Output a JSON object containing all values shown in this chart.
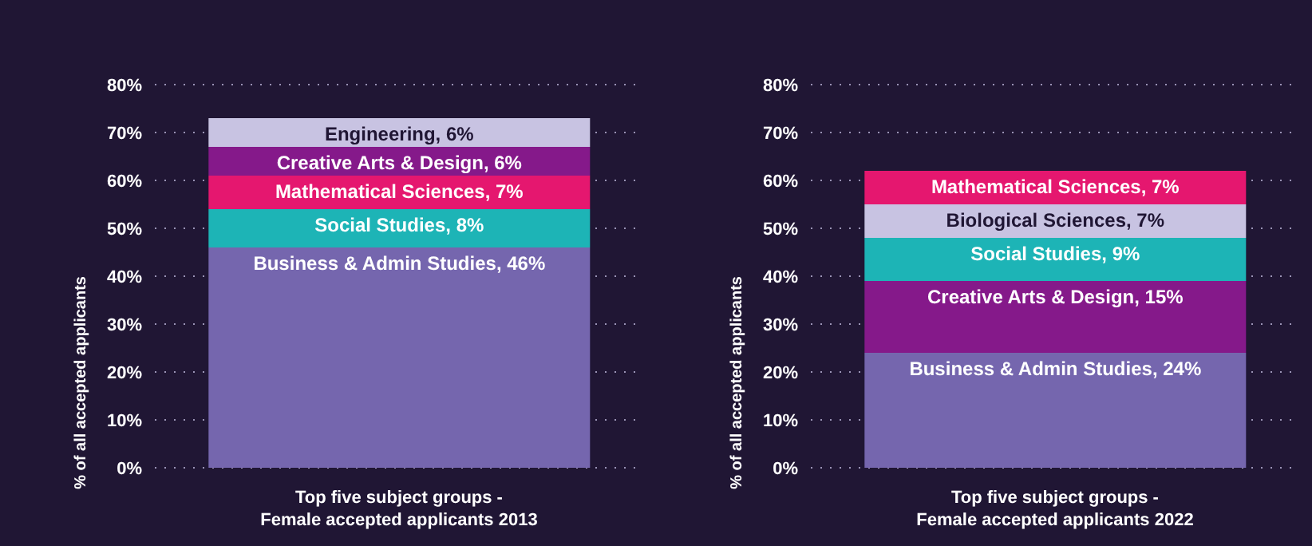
{
  "chart_data": [
    {
      "type": "bar",
      "stacked": true,
      "categories": [
        "Top five subject groups -\nFemale accepted applicants 2013"
      ],
      "ylabel": "% of all accepted applicants",
      "ylim": [
        0,
        80
      ],
      "yticks": [
        {
          "value": 0,
          "label": "0%"
        },
        {
          "value": 10,
          "label": "10%"
        },
        {
          "value": 20,
          "label": "20%"
        },
        {
          "value": 30,
          "label": "30%"
        },
        {
          "value": 40,
          "label": "40%"
        },
        {
          "value": 50,
          "label": "50%"
        },
        {
          "value": 60,
          "label": "60%"
        },
        {
          "value": 70,
          "label": "70%"
        },
        {
          "value": 80,
          "label": "80%"
        }
      ],
      "grid": "y",
      "series": [
        {
          "color": "#7566ae",
          "values": [
            46
          ],
          "value_labels": [
            "Business & Admin Studies, 46%"
          ]
        },
        {
          "color": "#1db4b6",
          "values": [
            8
          ],
          "value_labels": [
            "Social Studies, 8%"
          ]
        },
        {
          "color": "#e5176f",
          "values": [
            7
          ],
          "value_labels": [
            "Mathematical Sciences, 7%"
          ]
        },
        {
          "color": "#85198a",
          "values": [
            6
          ],
          "value_labels": [
            "Creative Arts & Design, 6%"
          ]
        },
        {
          "color": "#c8c3e2",
          "values": [
            6
          ],
          "value_labels": [
            "Engineering, 6%"
          ]
        }
      ]
    },
    {
      "type": "bar",
      "stacked": true,
      "categories": [
        "Top five subject groups -\nFemale accepted applicants 2022"
      ],
      "ylabel": "% of all accepted applicants",
      "ylim": [
        0,
        80
      ],
      "yticks": [
        {
          "value": 0,
          "label": "0%"
        },
        {
          "value": 10,
          "label": "10%"
        },
        {
          "value": 20,
          "label": "20%"
        },
        {
          "value": 30,
          "label": "30%"
        },
        {
          "value": 40,
          "label": "40%"
        },
        {
          "value": 50,
          "label": "50%"
        },
        {
          "value": 60,
          "label": "60%"
        },
        {
          "value": 70,
          "label": "70%"
        },
        {
          "value": 80,
          "label": "80%"
        }
      ],
      "grid": "y",
      "series": [
        {
          "color": "#7566ae",
          "values": [
            24
          ],
          "value_labels": [
            "Business & Admin Studies, 24%"
          ]
        },
        {
          "color": "#85198a",
          "values": [
            15
          ],
          "value_labels": [
            "Creative Arts & Design, 15%"
          ]
        },
        {
          "color": "#1db4b6",
          "values": [
            9
          ],
          "value_labels": [
            "Social Studies, 9%"
          ]
        },
        {
          "color": "#c8c3e2",
          "values": [
            7
          ],
          "value_labels": [
            "Biological Sciences, 7%"
          ]
        },
        {
          "color": "#e5176f",
          "values": [
            7
          ],
          "value_labels": [
            "Mathematical Sciences, 7%"
          ]
        }
      ]
    }
  ]
}
